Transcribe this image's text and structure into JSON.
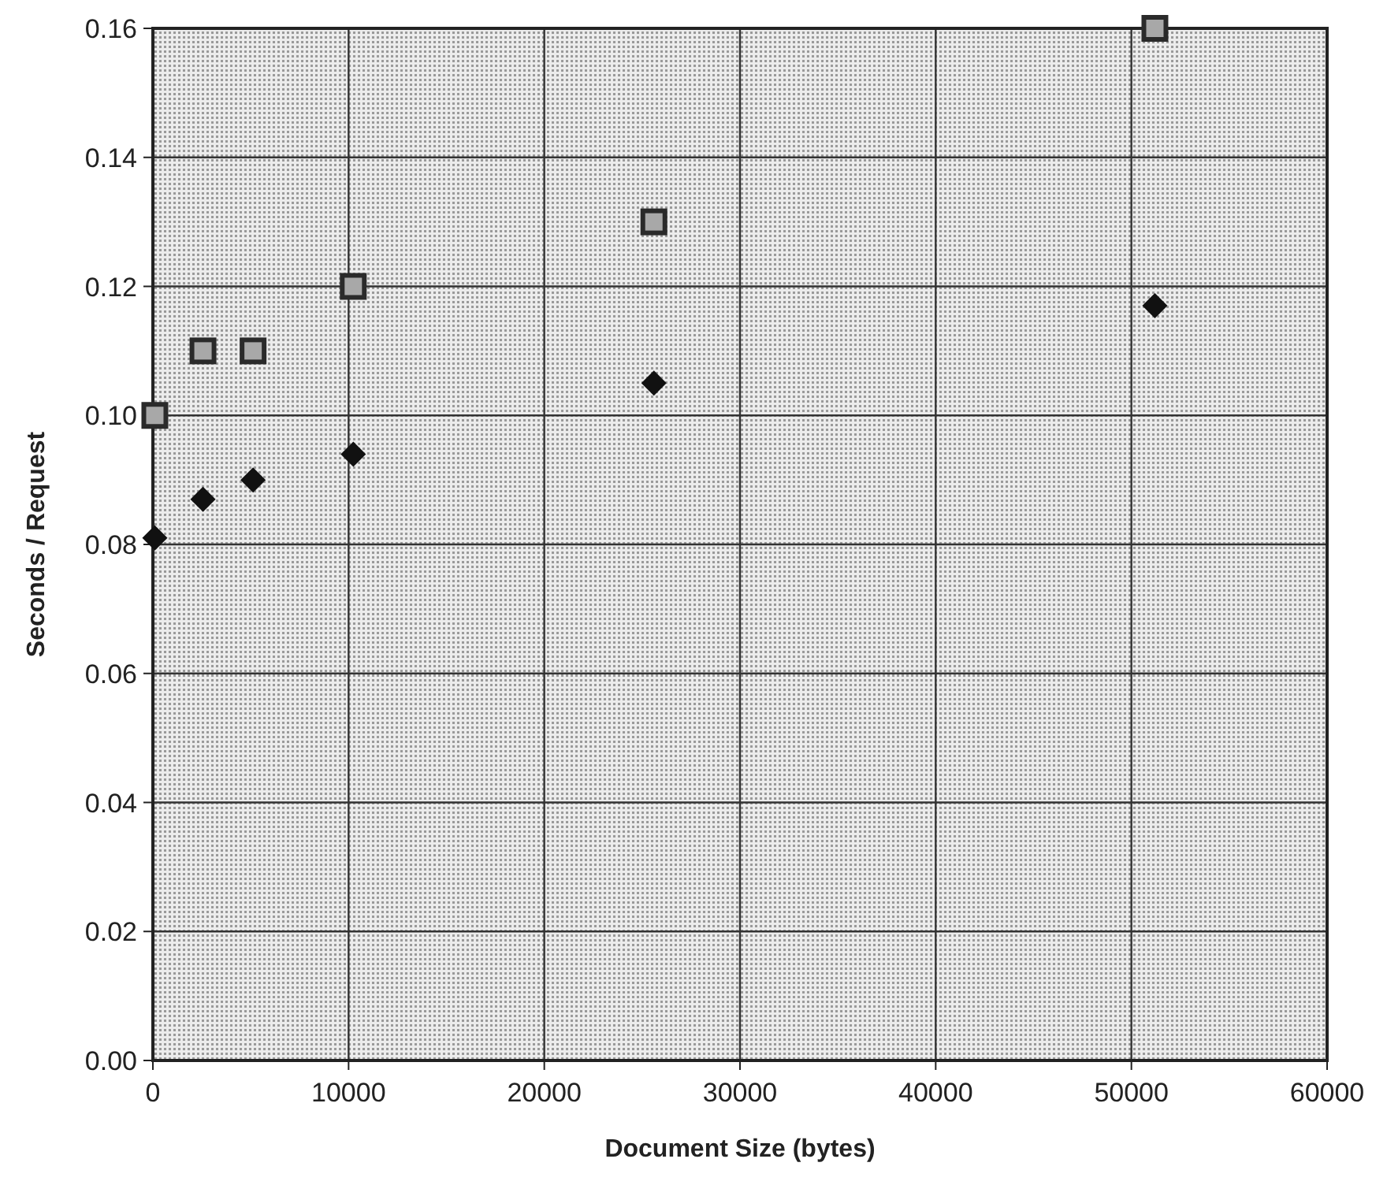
{
  "chart_data": {
    "type": "scatter",
    "xlabel": "Document Size (bytes)",
    "ylabel": "Seconds / Request",
    "x": [
      100,
      2560,
      5120,
      10240,
      25600,
      51200
    ],
    "series": [
      {
        "color": "#2a2a2a",
        "marker": "square",
        "values": [
          0.1,
          0.11,
          0.11,
          0.12,
          0.13,
          0.16
        ]
      },
      {
        "color": "#111111",
        "marker": "diamond",
        "values": [
          0.081,
          0.087,
          0.09,
          0.094,
          0.105,
          0.117
        ]
      }
    ],
    "xlim": [
      0,
      60000
    ],
    "xticks": [
      0,
      10000,
      20000,
      30000,
      40000,
      50000,
      60000
    ],
    "ylim": [
      0,
      0.16
    ],
    "yticks": [
      {
        "value": 0,
        "label": "0.00"
      },
      {
        "value": 0.02,
        "label": "0.02"
      },
      {
        "value": 0.04,
        "label": "0.04"
      },
      {
        "value": 0.06,
        "label": "0.06"
      },
      {
        "value": 0.08,
        "label": "0.08"
      },
      {
        "value": 0.1,
        "label": "0.10"
      },
      {
        "value": 0.12,
        "label": "0.12"
      },
      {
        "value": 0.14,
        "label": "0.14"
      },
      {
        "value": 0.16,
        "label": "0.16"
      }
    ],
    "grid": true
  }
}
